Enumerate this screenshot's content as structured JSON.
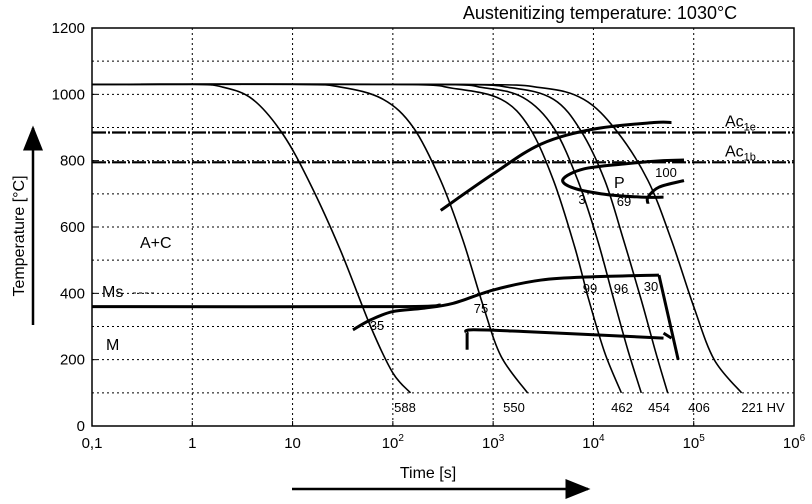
{
  "chart_data": {
    "type": "line",
    "title": "Austenitizing temperature: 1030°C",
    "xlabel": "Time [s]",
    "ylabel": "Temperature [°C]",
    "x_scale": "log",
    "xlim": [
      0.1,
      1000000
    ],
    "ylim": [
      0,
      1200
    ],
    "x_ticks": [
      {
        "label": "0,1",
        "exp": ""
      },
      {
        "label": "1",
        "exp": ""
      },
      {
        "label": "10",
        "exp": ""
      },
      {
        "label": "10",
        "exp": "2"
      },
      {
        "label": "10",
        "exp": "3"
      },
      {
        "label": "10",
        "exp": "4"
      },
      {
        "label": "10",
        "exp": "5"
      },
      {
        "label": "10",
        "exp": "6"
      }
    ],
    "y_ticks": [
      "0",
      "200",
      "400",
      "600",
      "800",
      "1000",
      "1200"
    ],
    "grid": true,
    "reference_lines": [
      {
        "name": "Ac",
        "sub": "1e",
        "y": 885
      },
      {
        "name": "Ac",
        "sub": "1b",
        "y": 795
      }
    ],
    "region_labels": [
      "A+C",
      "P",
      "M"
    ],
    "ms_label": "Ms",
    "cooling_curves": [
      {
        "hardness": "588",
        "points": [
          [
            0.1,
            1030
          ],
          [
            1,
            1030
          ],
          [
            2,
            1022
          ],
          [
            4,
            985
          ],
          [
            8,
            880
          ],
          [
            15,
            730
          ],
          [
            30,
            530
          ],
          [
            60,
            300
          ],
          [
            100,
            160
          ],
          [
            150,
            100
          ]
        ]
      },
      {
        "hardness": "550",
        "points": [
          [
            0.1,
            1030
          ],
          [
            10,
            1030
          ],
          [
            30,
            1022
          ],
          [
            80,
            985
          ],
          [
            160,
            900
          ],
          [
            300,
            740
          ],
          [
            500,
            560
          ],
          [
            800,
            360
          ],
          [
            1200,
            210
          ],
          [
            2200,
            100
          ]
        ]
      },
      {
        "hardness": "462",
        "points": [
          [
            0.1,
            1030
          ],
          [
            100,
            1030
          ],
          [
            400,
            1018
          ],
          [
            1200,
            985
          ],
          [
            2300,
            900
          ],
          [
            4000,
            740
          ],
          [
            6500,
            540
          ],
          [
            9000,
            380
          ],
          [
            13000,
            220
          ],
          [
            19000,
            100
          ]
        ]
      },
      {
        "hardness": "454",
        "points": [
          [
            0.1,
            1030
          ],
          [
            200,
            1030
          ],
          [
            800,
            1020
          ],
          [
            2000,
            990
          ],
          [
            4000,
            900
          ],
          [
            7000,
            740
          ],
          [
            11000,
            560
          ],
          [
            16000,
            380
          ],
          [
            22000,
            230
          ],
          [
            30000,
            100
          ]
        ]
      },
      {
        "hardness": "406",
        "points": [
          [
            0.1,
            1030
          ],
          [
            300,
            1030
          ],
          [
            1500,
            1020
          ],
          [
            4000,
            985
          ],
          [
            7500,
            890
          ],
          [
            13000,
            740
          ],
          [
            20000,
            560
          ],
          [
            30000,
            380
          ],
          [
            42000,
            220
          ],
          [
            55000,
            100
          ]
        ]
      },
      {
        "hardness": "221 HV",
        "points": [
          [
            0.1,
            1030
          ],
          [
            500,
            1030
          ],
          [
            3000,
            1020
          ],
          [
            8000,
            985
          ],
          [
            17000,
            890
          ],
          [
            35000,
            740
          ],
          [
            60000,
            560
          ],
          [
            100000,
            360
          ],
          [
            160000,
            200
          ],
          [
            300000,
            100
          ]
        ]
      }
    ],
    "curve_labels_inside": [
      "35",
      "75",
      "3",
      "69",
      "99",
      "96",
      "30",
      "100"
    ],
    "transformation_lines": {
      "ferrite_start": [
        [
          300,
          650
        ],
        [
          1000,
          760
        ],
        [
          3000,
          850
        ],
        [
          10000,
          895
        ],
        [
          40000,
          915
        ],
        [
          60000,
          915
        ]
      ],
      "pearlite_start_loop": [
        [
          50000,
          690
        ],
        [
          30000,
          690
        ],
        [
          12000,
          700
        ],
        [
          6000,
          720
        ],
        [
          5000,
          745
        ],
        [
          8000,
          775
        ],
        [
          20000,
          790
        ],
        [
          50000,
          800
        ],
        [
          80000,
          802
        ]
      ],
      "pearlite_finish": [
        [
          80000,
          740
        ],
        [
          45000,
          720
        ],
        [
          35000,
          690
        ],
        [
          35000,
          670
        ]
      ],
      "bainite_start": [
        [
          40,
          290
        ],
        [
          60,
          320
        ],
        [
          100,
          345
        ],
        [
          200,
          355
        ],
        [
          400,
          370
        ],
        [
          1000,
          410
        ],
        [
          3000,
          440
        ],
        [
          10000,
          450
        ],
        [
          45000,
          455
        ]
      ],
      "bainite_finish": [
        [
          550,
          280
        ],
        [
          600,
          290
        ],
        [
          2000,
          285
        ],
        [
          10000,
          275
        ],
        [
          50000,
          265
        ]
      ],
      "ms_line": [
        [
          0.1,
          360
        ],
        [
          100,
          360
        ],
        [
          300,
          365
        ]
      ],
      "bainite_right_end": [
        [
          45000,
          455
        ],
        [
          70000,
          200
        ]
      ],
      "martensite_tail": [
        [
          50000,
          280
        ],
        [
          60000,
          265
        ]
      ]
    }
  }
}
